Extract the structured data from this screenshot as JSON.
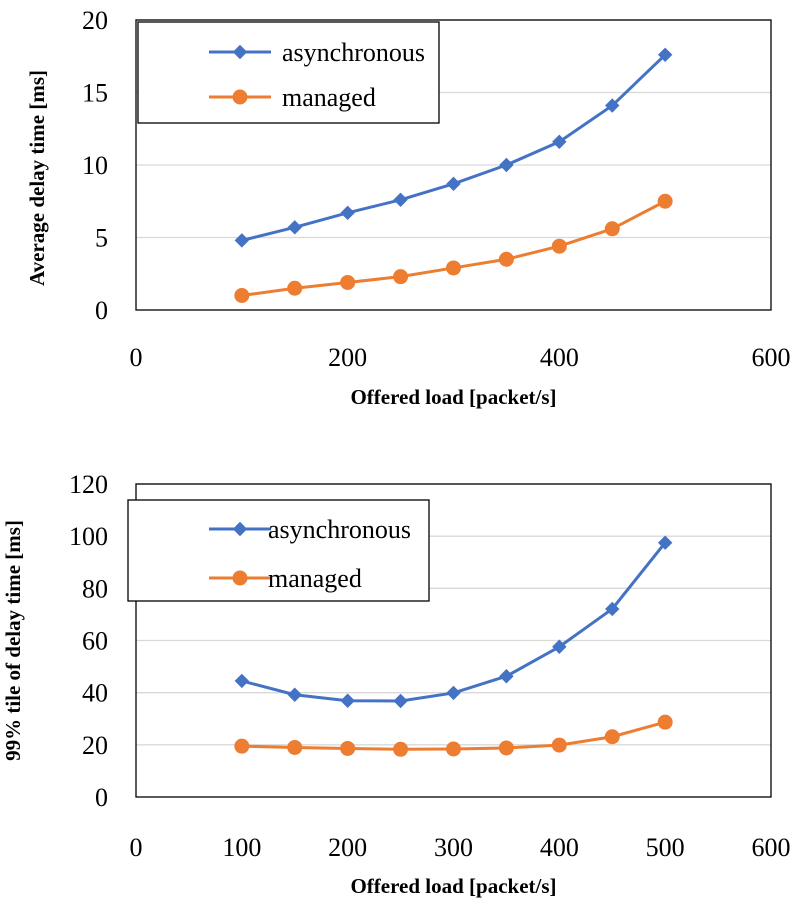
{
  "chart_data": [
    {
      "type": "line",
      "xlabel": "Offered load [packet/s]",
      "ylabel": "Average delay time [ms]",
      "xlim": [
        0,
        600
      ],
      "ylim": [
        0,
        20
      ],
      "xticks": [
        0,
        200,
        400,
        600
      ],
      "yticks": [
        0,
        5,
        10,
        15,
        20
      ],
      "grid": "horizontal",
      "legend": "top-left",
      "series": [
        {
          "name": "asynchronous",
          "color": "#4472c4",
          "marker": "diamond",
          "x": [
            100,
            150,
            200,
            250,
            300,
            350,
            400,
            450,
            500
          ],
          "y": [
            4.8,
            5.7,
            6.7,
            7.6,
            8.7,
            10.0,
            11.6,
            14.1,
            17.6
          ]
        },
        {
          "name": "managed",
          "color": "#ed7d31",
          "marker": "circle",
          "x": [
            100,
            150,
            200,
            250,
            300,
            350,
            400,
            450,
            500
          ],
          "y": [
            1.0,
            1.5,
            1.9,
            2.3,
            2.9,
            3.5,
            4.4,
            5.6,
            7.5
          ]
        }
      ]
    },
    {
      "type": "line",
      "xlabel": "Offered load [packet/s]",
      "ylabel": "99% tile of delay time [ms]",
      "xlim": [
        0,
        600
      ],
      "ylim": [
        0,
        120
      ],
      "xticks": [
        0,
        100,
        200,
        300,
        400,
        500,
        600
      ],
      "yticks": [
        0,
        20,
        40,
        60,
        80,
        100,
        120
      ],
      "grid": "horizontal",
      "legend": "top-left",
      "series": [
        {
          "name": "asynchronous",
          "color": "#4472c4",
          "marker": "diamond",
          "x": [
            100,
            150,
            200,
            250,
            300,
            350,
            400,
            450,
            500
          ],
          "y": [
            44.5,
            39.2,
            36.9,
            36.8,
            39.9,
            46.3,
            57.6,
            72.1,
            97.5
          ]
        },
        {
          "name": "managed",
          "color": "#ed7d31",
          "marker": "circle",
          "x": [
            100,
            150,
            200,
            250,
            300,
            350,
            400,
            450,
            500
          ],
          "y": [
            19.5,
            19.0,
            18.6,
            18.3,
            18.4,
            18.8,
            19.9,
            23.1,
            28.7
          ]
        }
      ]
    }
  ]
}
